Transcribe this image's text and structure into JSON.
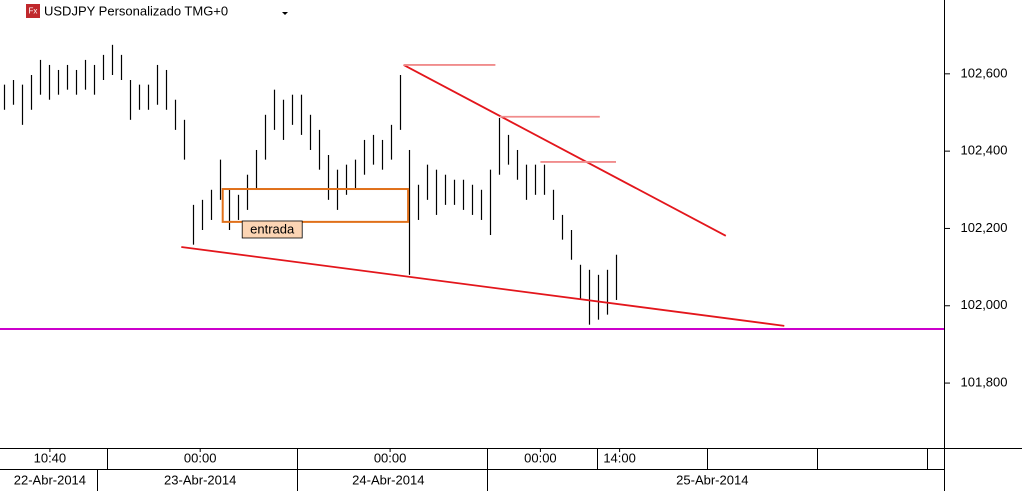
{
  "chart_data": {
    "type": "ohlc",
    "title": "USDJPY Personalizado TMG+0",
    "icon": "Fx",
    "color": "#000000",
    "ylim": [
      101632,
      102791
    ],
    "xlim": [
      -0.444,
      104.444
    ],
    "yticks": [
      {
        "value": 101800,
        "label": "101,800"
      },
      {
        "value": 102000,
        "label": "102,000"
      },
      {
        "value": 102200,
        "label": "102,200"
      },
      {
        "value": 102400,
        "label": "102,400"
      },
      {
        "value": 102600,
        "label": "102,600"
      }
    ],
    "xticks": [
      {
        "value": 5.1,
        "label": "10:40"
      },
      {
        "value": 21.8,
        "label": "00:00"
      },
      {
        "value": 42.9,
        "label": "00:00"
      },
      {
        "value": 59.6,
        "label": "00:00"
      },
      {
        "value": 68.4,
        "label": "14:00"
      }
    ],
    "date_ticks": [
      {
        "value": 5.1,
        "label": "22-Abr-2014"
      },
      {
        "value": 21.8,
        "label": "23-Abr-2014"
      },
      {
        "value": 42.7,
        "label": "24-Abr-2014"
      },
      {
        "value": 78.7,
        "label": "25-Abr-2014"
      }
    ],
    "high": [
      102572,
      102584,
      102572,
      102597,
      102636,
      102623,
      102610,
      102623,
      102610,
      102636,
      102623,
      102649,
      102675,
      102649,
      102584,
      102572,
      102572,
      102623,
      102610,
      102533,
      102481,
      102261,
      102274,
      102300,
      102378,
      102300,
      102287,
      102339,
      102403,
      102494,
      102559,
      102533,
      102546,
      102546,
      102494,
      102455,
      102390,
      102352,
      102365,
      102378,
      102429,
      102442,
      102429,
      102468,
      102597,
      102403,
      102313,
      102365,
      102352,
      102339,
      102326,
      102326,
      102313,
      102300,
      102352,
      102486,
      102442,
      102403,
      102365,
      102365,
      102365,
      102300,
      102235,
      102196,
      102106,
      102093,
      102080,
      102093,
      102132
    ],
    "low": [
      102507,
      102520,
      102468,
      102507,
      102546,
      102533,
      102546,
      102559,
      102546,
      102559,
      102546,
      102584,
      102597,
      102584,
      102481,
      102507,
      102507,
      102520,
      102507,
      102455,
      102378,
      102158,
      102196,
      102222,
      102274,
      102196,
      102222,
      102248,
      102300,
      102378,
      102455,
      102429,
      102468,
      102442,
      102403,
      102352,
      102274,
      102248,
      102287,
      102300,
      102339,
      102365,
      102352,
      102378,
      102455,
      102080,
      102222,
      102274,
      102235,
      102261,
      102261,
      102248,
      102235,
      102222,
      102183,
      102339,
      102365,
      102326,
      102274,
      102287,
      102287,
      102222,
      102171,
      102119,
      102015,
      101951,
      101964,
      101977,
      102015
    ],
    "drawings": [
      {
        "kind": "line",
        "color": "#e3161c",
        "x": [
          44.4,
          80.2
        ],
        "y": [
          102623,
          102181
        ]
      },
      {
        "kind": "line",
        "color": "#e3161c",
        "x": [
          19.7,
          86.7
        ],
        "y": [
          102152,
          101948
        ]
      },
      {
        "kind": "line",
        "color": "#f08c8c",
        "x": [
          44.4,
          54.6
        ],
        "y": [
          102623,
          102623
        ]
      },
      {
        "kind": "line",
        "color": "#f08c8c",
        "x": [
          55.1,
          66.2
        ],
        "y": [
          102489,
          102489
        ]
      },
      {
        "kind": "line",
        "color": "#f08c8c",
        "x": [
          59.6,
          68.0
        ],
        "y": [
          102372,
          102372
        ]
      },
      {
        "kind": "hline",
        "color": "#cc00cc",
        "y": [
          101940
        ]
      },
      {
        "kind": "rect",
        "color": "#e0701a",
        "x": [
          24.3,
          44.9
        ],
        "y": [
          102302,
          102217
        ]
      }
    ],
    "label": {
      "text": "entrada",
      "x": 29.8,
      "y": 102196
    }
  }
}
